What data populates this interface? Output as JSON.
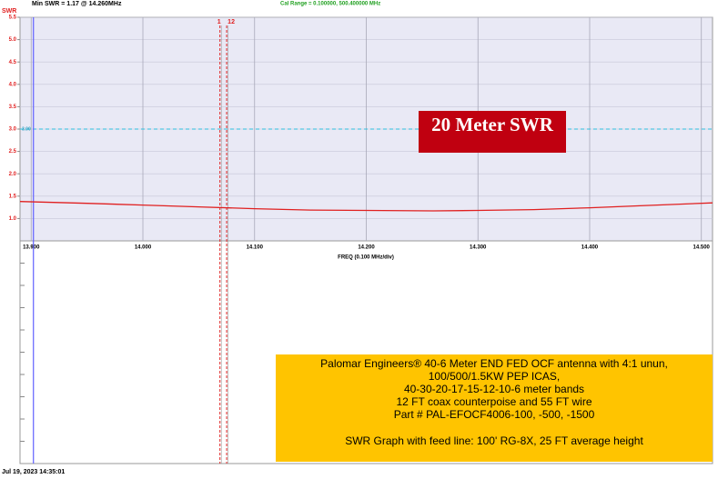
{
  "chart_data": {
    "type": "line",
    "header_left": "Min SWR =  1.17 @  14.260MHz",
    "header_center": "Cal Range = 0.100000,  500.400000 MHz",
    "y_label": "SWR",
    "x_label": "FREQ (0.100 MHz/div)",
    "x": [
      13.89,
      13.95,
      14.0,
      14.05,
      14.1,
      14.15,
      14.2,
      14.26,
      14.3,
      14.35,
      14.4,
      14.45,
      14.51
    ],
    "series": [
      {
        "name": "SWR",
        "color": "#e02020",
        "values": [
          1.38,
          1.34,
          1.3,
          1.26,
          1.22,
          1.19,
          1.18,
          1.17,
          1.18,
          1.2,
          1.24,
          1.29,
          1.35
        ]
      }
    ],
    "xlim": [
      13.89,
      14.51
    ],
    "xticks": [
      {
        "value": 13.9,
        "label": "13.900"
      },
      {
        "value": 14.0,
        "label": "14.000"
      },
      {
        "value": 14.1,
        "label": "14.100"
      },
      {
        "value": 14.2,
        "label": "14.200"
      },
      {
        "value": 14.3,
        "label": "14.300"
      },
      {
        "value": 14.4,
        "label": "14.400"
      },
      {
        "value": 14.5,
        "label": "14.500"
      }
    ],
    "ylim": [
      0.5,
      5.5
    ],
    "yticks": [
      {
        "value": 1,
        "label": "1.0"
      },
      1.5,
      {
        "value": 2,
        "label": "2.0"
      },
      2.5,
      {
        "value": 3,
        "label": "3.0"
      },
      3.5,
      {
        "value": 4,
        "label": "4.0"
      },
      4.5,
      {
        "value": 5,
        "label": "5.0"
      },
      5.5
    ],
    "grid": true,
    "reference": {
      "value": 3,
      "label": "3.00",
      "color": "#30c0e0"
    },
    "cursor": {
      "x": 13.902,
      "color": "#6060ff"
    },
    "markers": [
      {
        "label": "1",
        "x": 14.069
      },
      {
        "label": "12",
        "x": 14.075
      }
    ],
    "annotation": "20 Meter SWR",
    "info": [
      "Palomar Engineers® 40-6 Meter END FED OCF antenna with 4:1 unun,",
      "100/500/1.5KW PEP ICAS,",
      "40-30-20-17-15-12-10-6 meter bands",
      "12 FT coax counterpoise and 55 FT wire",
      "Part # PAL-EFOCF4006-100,  -500,  -1500",
      "SWR Graph with feed line: 100' RG-8X, 25 FT average height"
    ],
    "timestamp": "Jul 19, 2023  14:35:01"
  }
}
